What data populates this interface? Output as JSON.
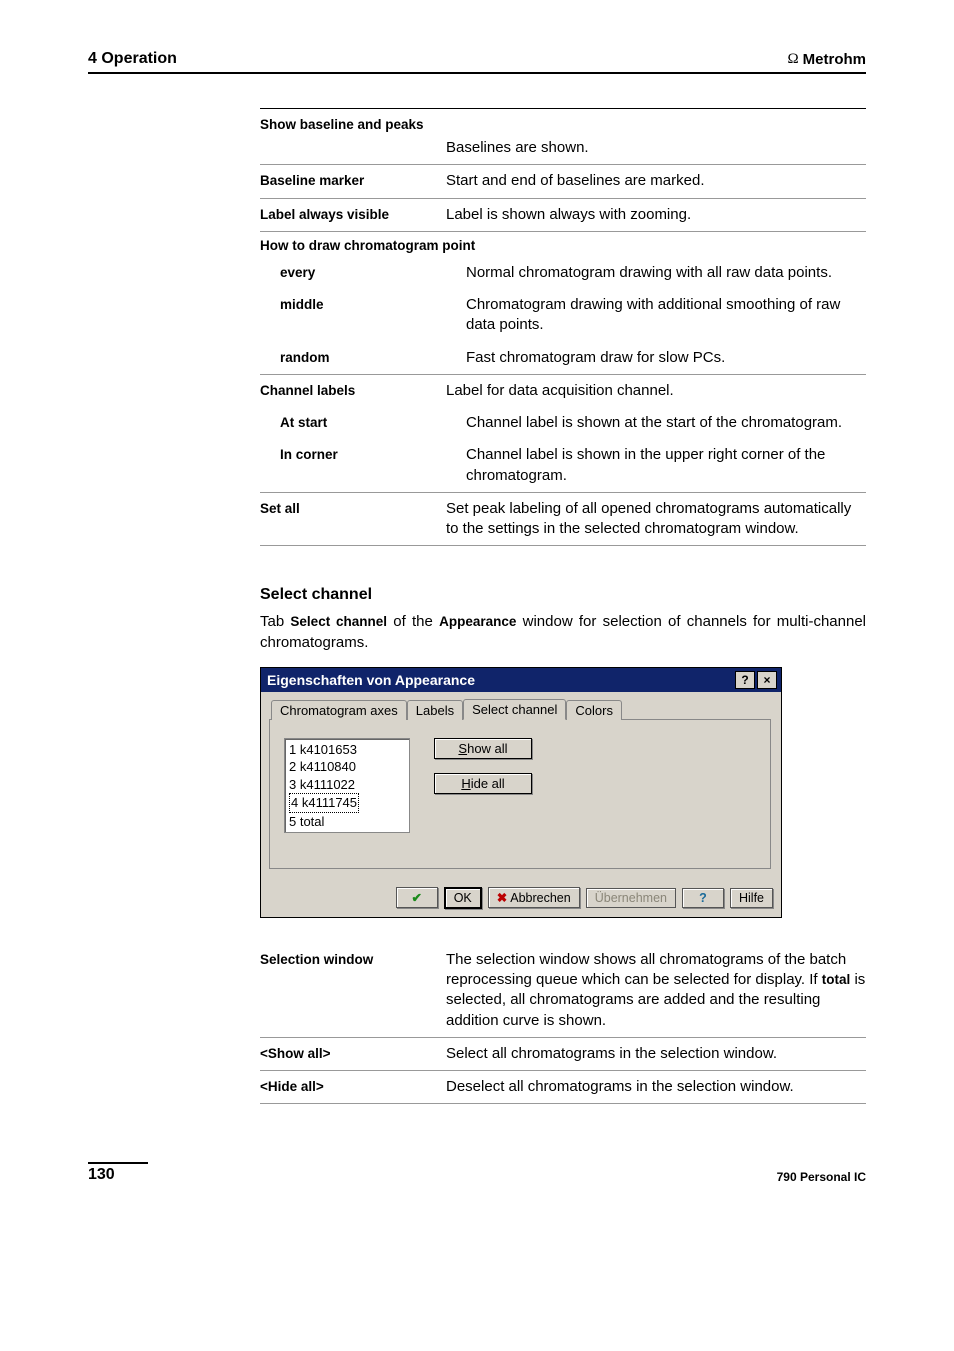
{
  "header": {
    "section": "4 Operation",
    "brand": "Metrohm",
    "omega": "Ω"
  },
  "tableTop": {
    "rows": [
      {
        "label": "Show baseline and peaks",
        "desc": "Baselines are shown.",
        "header": true
      },
      {
        "label": "Baseline marker",
        "desc": "Start and end of baselines are marked."
      },
      {
        "label": "Label always visible",
        "desc": "Label is shown always with zooming."
      }
    ],
    "group1": {
      "head": "How to draw chromatogram point",
      "rows": [
        {
          "label": "every",
          "desc": "Normal chromatogram drawing with all raw data points."
        },
        {
          "label": "middle",
          "desc": "Chromatogram drawing with additional smoothing of raw data points."
        },
        {
          "label": "random",
          "desc": "Fast chromatogram draw for slow PCs."
        }
      ]
    },
    "group2": {
      "head": "Channel labels",
      "headDesc": "Label for data acquisition channel.",
      "rows": [
        {
          "label": "At start",
          "desc": "Channel label is shown at the start of the chromatogram."
        },
        {
          "label": "In corner",
          "desc": "Channel label is shown in the upper right corner of the chromatogram."
        }
      ]
    },
    "setAll": {
      "label": "Set all",
      "desc": "Set peak labeling of all opened chromatograms automatically to the settings in the selected chromatogram window."
    }
  },
  "sectionHeading": "Select channel",
  "para": {
    "pre": "Tab ",
    "b1": "Select channel",
    "mid": " of the ",
    "b2": "Appearance",
    "post": " window for selection of channels for multi-channel chromatograms."
  },
  "dialog": {
    "title": "Eigenschaften von Appearance",
    "help": "?",
    "close": "×",
    "tabs": [
      "Chromatogram axes",
      "Labels",
      "Select channel",
      "Colors"
    ],
    "activeTab": 2,
    "listItems": [
      "1 k4101653",
      "2 k4110840",
      "3 k4111022",
      "4 k4111745",
      "5 total"
    ],
    "dottedIndex": 3,
    "showAll_pre": "S",
    "showAll_rest": "how all",
    "hideAll_pre": "H",
    "hideAll_rest": "ide all",
    "ok": "OK",
    "cancel": "Abbrechen",
    "apply": "Übernehmen",
    "helpBtn": "Hilfe"
  },
  "tableBottom": {
    "rows": [
      {
        "label": "Selection window",
        "descParts": {
          "pre": "The selection window shows all chromatograms of the batch reprocessing queue which can be selected for display. If ",
          "bold": "total",
          "post": " is selected, all chromatograms are added and the resulting addition curve is shown."
        }
      },
      {
        "label": "<Show all>",
        "desc": "Select all chromatograms in the selection window."
      },
      {
        "label": "<Hide all>",
        "desc": "Deselect all chromatograms in the selection window."
      }
    ]
  },
  "footer": {
    "page": "130",
    "product": "790 Personal IC"
  }
}
